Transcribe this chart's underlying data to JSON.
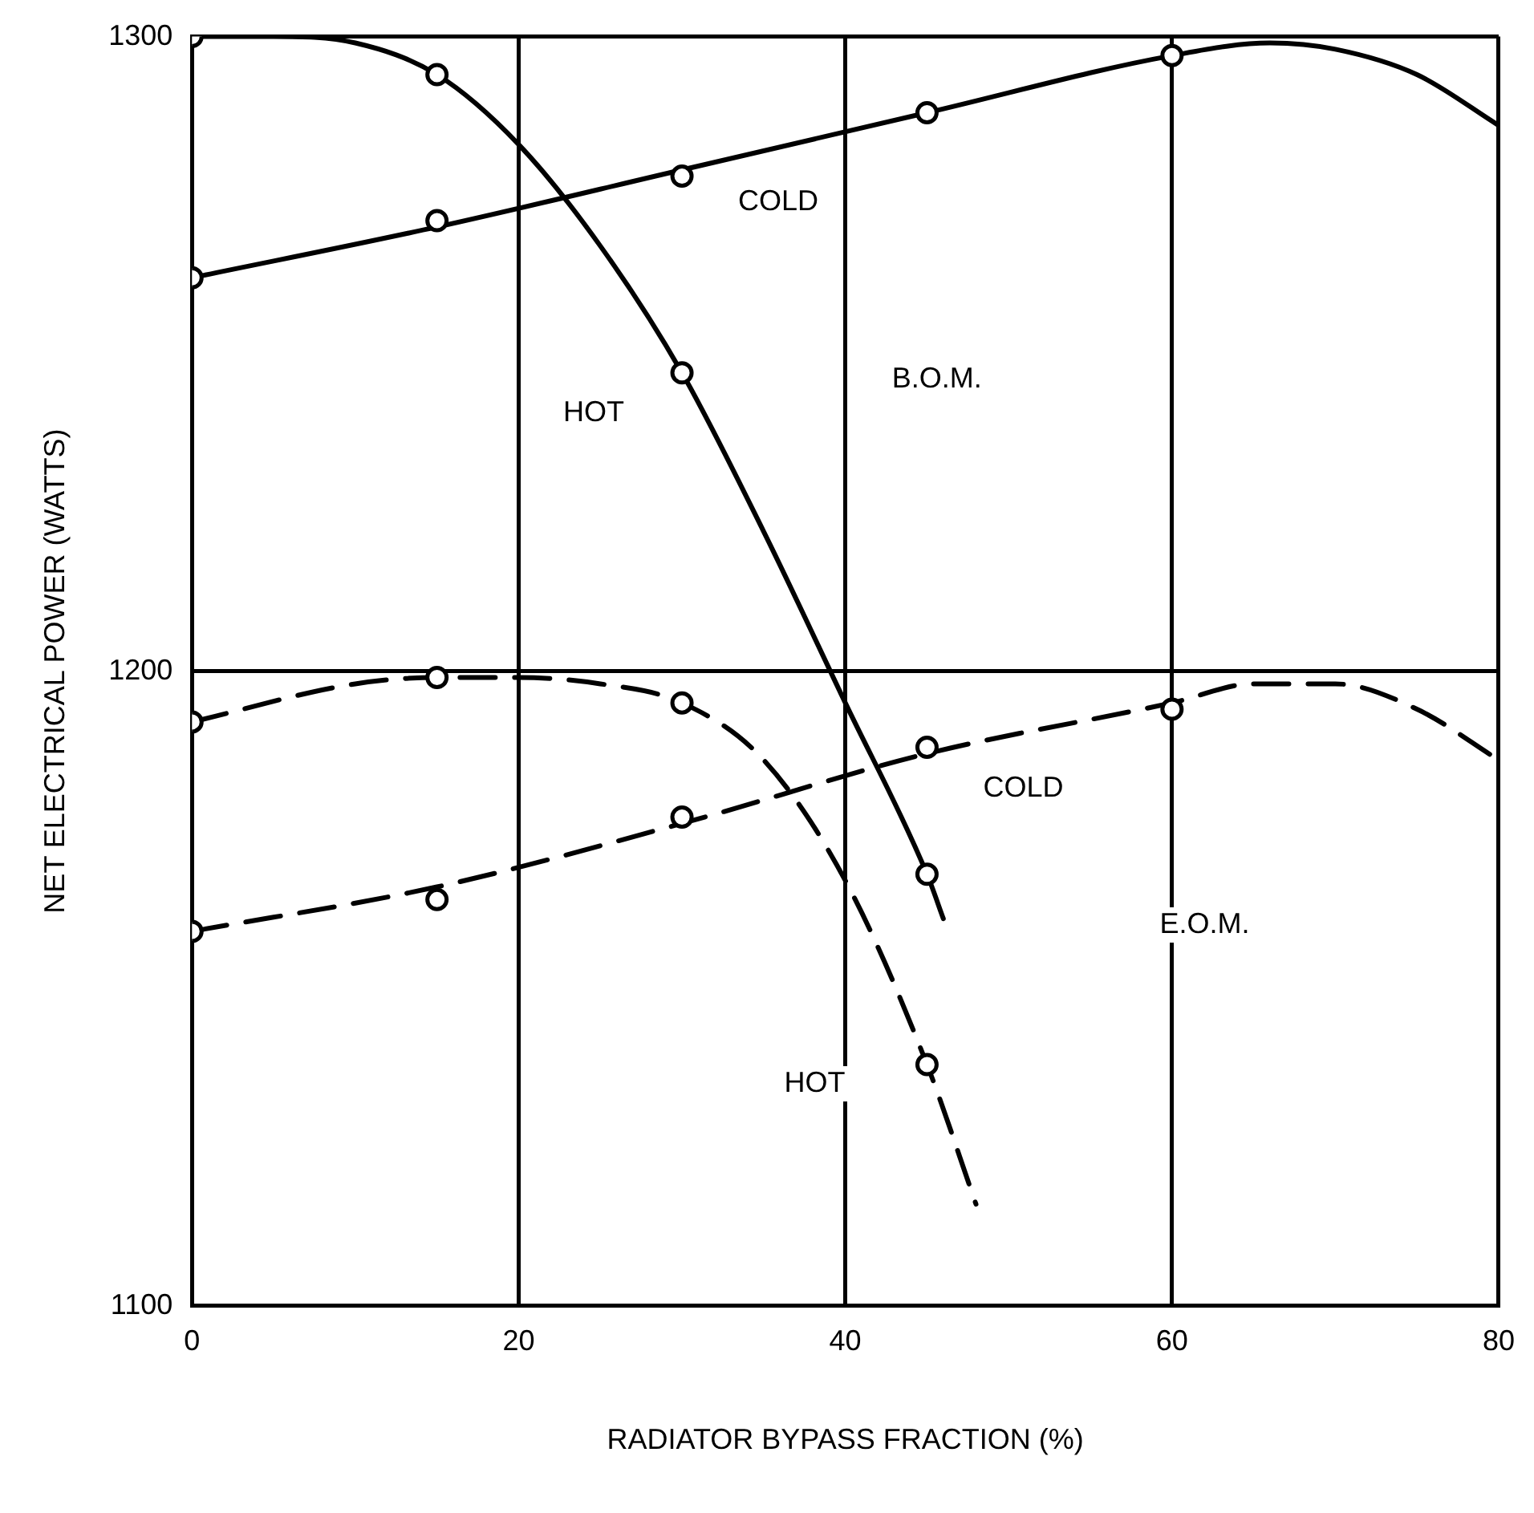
{
  "chart_data": {
    "type": "line",
    "xlabel": "RADIATOR BYPASS FRACTION (%)",
    "ylabel": "NET ELECTRICAL POWER (WATTS)",
    "xlim": [
      0,
      80
    ],
    "xticks": [
      0,
      20,
      40,
      60,
      80
    ],
    "ylim": [
      1100,
      1300
    ],
    "yticks": [
      1100,
      1200,
      1300
    ],
    "grid": true,
    "legend": false,
    "series": [
      {
        "name": "HOT",
        "color": "#000000",
        "line_style": "solid",
        "marker": "none",
        "x": [
          0,
          5,
          10,
          15,
          20,
          25,
          30,
          35,
          40,
          45,
          46
        ],
        "values": [
          1300,
          1300,
          1299,
          1294,
          1283,
          1267,
          1247,
          1222,
          1195,
          1168,
          1161
        ]
      },
      {
        "type": "scatter",
        "color": "#000000",
        "marker": "circle",
        "x": [
          0,
          15,
          30,
          45
        ],
        "values": [
          1300,
          1294,
          1247,
          1168
        ]
      },
      {
        "name": "COLD",
        "color": "#000000",
        "line_style": "solid",
        "marker": "none",
        "x": [
          0,
          15,
          30,
          45,
          60,
          66,
          70,
          75,
          80
        ],
        "values": [
          1262,
          1270,
          1279,
          1288,
          1297,
          1299,
          1298,
          1294,
          1286
        ]
      },
      {
        "type": "scatter",
        "color": "#000000",
        "marker": "circle",
        "x": [
          0,
          15,
          30,
          45,
          60
        ],
        "values": [
          1262,
          1271,
          1278,
          1288,
          1297
        ]
      },
      {
        "name": "HOT",
        "color": "#000000",
        "line_style": "dashed",
        "marker": "none",
        "x": [
          0,
          10,
          15,
          20,
          25,
          30,
          35,
          40,
          45,
          48
        ],
        "values": [
          1192,
          1198,
          1199,
          1199,
          1198,
          1195,
          1186,
          1167,
          1138,
          1116
        ]
      },
      {
        "type": "scatter",
        "color": "#000000",
        "marker": "circle",
        "x": [
          0,
          15,
          30,
          45
        ],
        "values": [
          1192,
          1199,
          1195,
          1138
        ]
      },
      {
        "name": "COLD",
        "color": "#000000",
        "line_style": "dashed",
        "marker": "none",
        "x": [
          0,
          15,
          30,
          45,
          60,
          65,
          70,
          75,
          80
        ],
        "values": [
          1159,
          1166,
          1176,
          1187,
          1195,
          1198,
          1198,
          1194,
          1186
        ]
      },
      {
        "type": "scatter",
        "color": "#000000",
        "marker": "circle",
        "x": [
          0,
          15,
          30,
          45,
          60
        ],
        "values": [
          1159,
          1164,
          1177,
          1188,
          1194
        ]
      }
    ],
    "annotations": [
      "B.O.M.",
      "E.O.M."
    ]
  }
}
